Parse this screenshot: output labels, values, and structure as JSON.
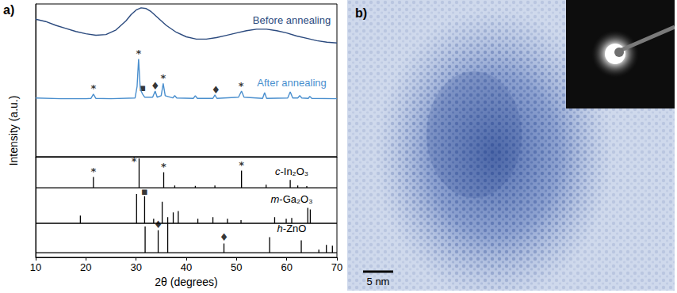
{
  "chart_data": [
    {
      "type": "line",
      "panel_label": "a)",
      "ylabel": "Intensity (a.u.)",
      "xlim": [
        10,
        70
      ],
      "xticks": [
        10,
        20,
        30,
        40,
        50,
        60,
        70
      ],
      "ylim": [
        0,
        10
      ],
      "yticks": [],
      "tick_labels": false,
      "grid": false,
      "series": [
        {
          "name": "Before annealing",
          "color": "#2b4a7e",
          "x": [
            10,
            12,
            14,
            16,
            18,
            20,
            22,
            24,
            26,
            28,
            29,
            30,
            31,
            32,
            33,
            34,
            35,
            36,
            38,
            40,
            42,
            44,
            46,
            48,
            50,
            52,
            54,
            56,
            58,
            60,
            62,
            64,
            66,
            68,
            70
          ],
          "values": [
            9.0,
            8.85,
            8.6,
            8.4,
            8.2,
            8.05,
            7.95,
            8.0,
            8.3,
            8.9,
            9.3,
            9.6,
            9.75,
            9.7,
            9.5,
            9.2,
            8.9,
            8.6,
            8.15,
            7.85,
            7.7,
            7.7,
            7.8,
            7.95,
            8.1,
            8.25,
            8.35,
            8.35,
            8.25,
            8.1,
            7.9,
            7.75,
            7.6,
            7.5,
            7.45
          ]
        },
        {
          "name": "After annealing",
          "color": "#4a8fce",
          "x": [
            10,
            15,
            20,
            21.0,
            21.5,
            22.0,
            25,
            29.8,
            30.2,
            30.5,
            30.8,
            31.0,
            31.3,
            31.7,
            33.3,
            33.8,
            34.2,
            35.0,
            35.4,
            35.8,
            37.3,
            37.7,
            38.1,
            41.4,
            41.8,
            42.2,
            45.3,
            45.7,
            46.1,
            50.4,
            51.0,
            51.5,
            55.2,
            55.6,
            56.0,
            60.2,
            60.7,
            61.2,
            62.2,
            62.6,
            63.0,
            64.3,
            64.6,
            65.0,
            70
          ],
          "values": [
            3.85,
            3.8,
            3.8,
            3.82,
            4.1,
            3.82,
            3.8,
            3.85,
            4.6,
            6.4,
            4.6,
            4.3,
            4.1,
            3.9,
            3.9,
            4.3,
            3.9,
            4.0,
            4.8,
            4.0,
            3.85,
            4.0,
            3.85,
            3.82,
            4.0,
            3.82,
            3.82,
            4.05,
            3.82,
            3.9,
            4.3,
            3.9,
            3.82,
            4.2,
            3.82,
            3.85,
            4.25,
            3.85,
            3.85,
            4.0,
            3.85,
            3.82,
            3.95,
            3.82,
            3.8
          ]
        }
      ],
      "annotations": [
        {
          "text": "*",
          "x": 21.5,
          "y": 4.5
        },
        {
          "text": "*",
          "x": 30.5,
          "y": 6.75
        },
        {
          "text": "▪",
          "x": 31.3,
          "y": 4.55
        },
        {
          "text": "♦",
          "x": 33.8,
          "y": 4.65
        },
        {
          "text": "*",
          "x": 35.4,
          "y": 5.15
        },
        {
          "text": "♦",
          "x": 45.9,
          "y": 4.4
        },
        {
          "text": "*",
          "x": 50.9,
          "y": 4.65
        }
      ]
    },
    {
      "type": "stick",
      "xlabel": "2θ (degrees)",
      "xlim": [
        10,
        70
      ],
      "xticks": [
        10,
        20,
        30,
        40,
        50,
        60,
        70
      ],
      "ylim": [
        0,
        6.5
      ],
      "yticks": [],
      "tick_labels": "x",
      "grid": false,
      "series": [
        {
          "name": "c-In₂O₃",
          "color": "#000000",
          "baseline": 4.5,
          "x": [
            21.5,
            30.6,
            35.5,
            37.7,
            41.8,
            45.7,
            51.0,
            55.9,
            60.7,
            62.2,
            64.0
          ],
          "values": [
            0.7,
            1.9,
            1.0,
            0.15,
            0.12,
            0.15,
            1.1,
            0.2,
            0.5,
            0.15,
            0.1
          ]
        },
        {
          "name": "m-Ga₂O₃",
          "color": "#000000",
          "baseline": 2.2,
          "x": [
            18.9,
            30.1,
            31.7,
            33.5,
            35.2,
            37.4,
            38.4,
            42.3,
            45.3,
            48.2,
            50.9,
            57.6,
            59.9,
            61.0,
            64.2,
            64.7
          ],
          "values": [
            0.5,
            1.9,
            1.75,
            0.3,
            1.4,
            0.7,
            0.8,
            0.3,
            0.4,
            0.3,
            0.2,
            0.4,
            0.3,
            0.35,
            1.0,
            0.9
          ]
        },
        {
          "name": "h-ZnO",
          "color": "#000000",
          "baseline": 0.3,
          "x": [
            31.8,
            34.4,
            36.3,
            47.5,
            56.6,
            62.9,
            66.4,
            67.9,
            69.1
          ],
          "values": [
            1.7,
            1.45,
            2.3,
            0.6,
            1.0,
            0.8,
            0.2,
            0.5,
            0.45
          ]
        }
      ],
      "annotations": [
        {
          "text": "*",
          "x": 21.5,
          "y": 5.55
        },
        {
          "text": "*",
          "x": 29.6,
          "y": 6.2
        },
        {
          "text": "*",
          "x": 35.5,
          "y": 5.85
        },
        {
          "text": "*",
          "x": 51.0,
          "y": 5.95
        },
        {
          "text": "▪",
          "x": 31.7,
          "y": 4.25
        },
        {
          "text": "♦",
          "x": 34.4,
          "y": 2.1
        },
        {
          "text": "♦",
          "x": 47.5,
          "y": 1.3
        }
      ]
    }
  ],
  "image": {
    "panel_label": "b)",
    "scale_bar": "5 nm"
  }
}
